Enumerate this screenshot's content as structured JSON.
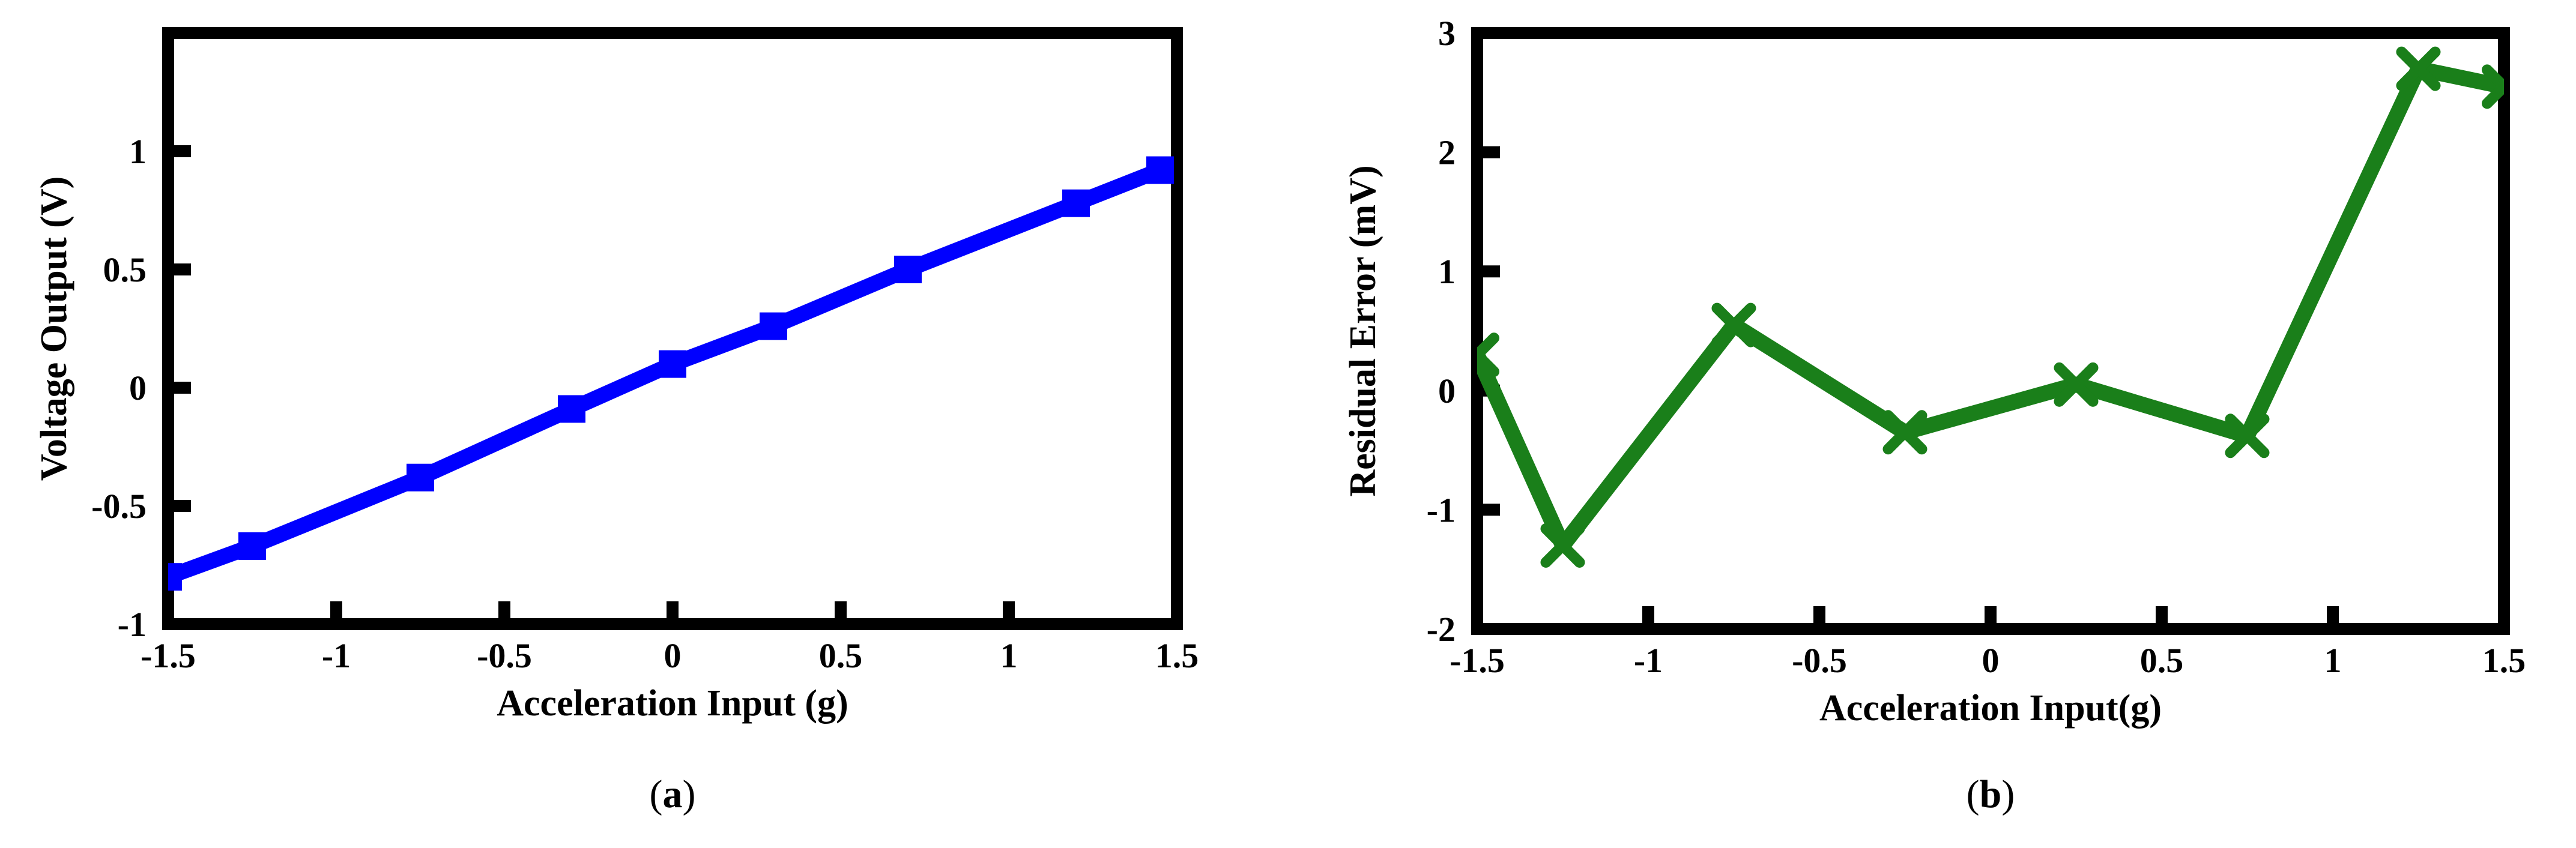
{
  "chart_data": [
    {
      "type": "line",
      "caption_letter": "a",
      "xlabel": "Acceleration Input (g)",
      "ylabel": "Voltage Output (V)",
      "xlim": [
        -1.5,
        1.5
      ],
      "ylim": [
        -1,
        1.5
      ],
      "xticks": [
        "-1.5",
        "-1",
        "-0.5",
        "0",
        "0.5",
        "1",
        "1.5"
      ],
      "xtick_values": [
        -1.5,
        -1,
        -0.5,
        0,
        0.5,
        1,
        1.5
      ],
      "yticks": [
        "-1",
        "-0.5",
        "0",
        "0.5",
        "1"
      ],
      "ytick_values": [
        -1,
        -0.5,
        0,
        0.5,
        1
      ],
      "marker": "square",
      "color": "#0000ff",
      "x": [
        -1.5,
        -1.25,
        -0.75,
        -0.3,
        0,
        0.3,
        0.7,
        1.2,
        1.45
      ],
      "y": [
        -0.8,
        -0.67,
        -0.38,
        -0.09,
        0.1,
        0.26,
        0.5,
        0.78,
        0.92
      ]
    },
    {
      "type": "line",
      "caption_letter": "b",
      "xlabel": "Acceleration Input(g)",
      "ylabel": "Residual Error (mV)",
      "xlim": [
        -1.5,
        1.5
      ],
      "ylim": [
        -2,
        3
      ],
      "xticks": [
        "-1.5",
        "-1",
        "-0.5",
        "0",
        "0.5",
        "1",
        "1.5"
      ],
      "xtick_values": [
        -1.5,
        -1,
        -0.5,
        0,
        0.5,
        1,
        1.5
      ],
      "yticks": [
        "-2",
        "-1",
        "0",
        "1",
        "2",
        "3"
      ],
      "ytick_values": [
        -2,
        -1,
        0,
        1,
        2,
        3
      ],
      "marker": "x",
      "color": "#1a7f1a",
      "x": [
        -1.5,
        -1.25,
        -0.75,
        -0.25,
        0.25,
        0.75,
        1.25,
        1.5
      ],
      "y": [
        0.3,
        -1.3,
        0.55,
        -0.35,
        0.05,
        -0.38,
        2.7,
        2.55
      ]
    }
  ]
}
